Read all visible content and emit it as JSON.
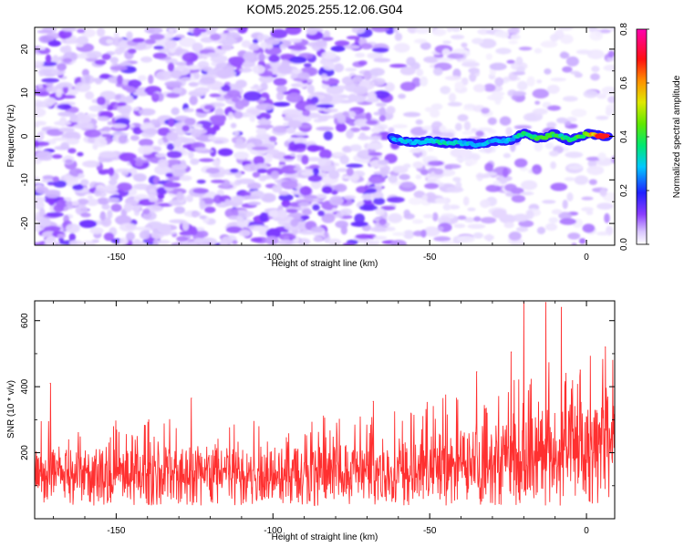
{
  "title": "KOM5.2025.255.12.06.G04",
  "chart_data": [
    {
      "type": "heatmap",
      "xlabel": "Height of straight line (km)",
      "ylabel": "Frequency (Hz)",
      "xlim": [
        -176,
        9
      ],
      "ylim": [
        -25,
        25
      ],
      "xticks": [
        -150,
        -100,
        -50,
        0
      ],
      "yticks": [
        -20,
        -10,
        0,
        10,
        20
      ],
      "colorbar": {
        "label": "Normalized spectral amplitude",
        "range": [
          0,
          0.8
        ],
        "ticks": [
          "0.0",
          "0.2",
          "0.4",
          "0.6",
          "0.8"
        ],
        "colors": [
          "#ffffff",
          "#c8a8ff",
          "#7a2cff",
          "#2222ff",
          "#00e0e0",
          "#00e000",
          "#d0e000",
          "#ff8000",
          "#ff0000",
          "#ff00aa"
        ]
      },
      "signal_trace": {
        "description_x": [
          -62,
          -55,
          -50,
          -45,
          -40,
          -35,
          -30,
          -25,
          -20,
          -15,
          -10,
          -5,
          0,
          3,
          7
        ],
        "frequency_hz": [
          -0.5,
          -1.5,
          -1.0,
          -1.5,
          -1.5,
          -2.0,
          -1.0,
          -1.0,
          0.5,
          -0.5,
          0.5,
          -1.0,
          0.5,
          0.2,
          0.0
        ],
        "amplitude": [
          0.25,
          0.3,
          0.3,
          0.32,
          0.3,
          0.28,
          0.28,
          0.26,
          0.38,
          0.42,
          0.36,
          0.4,
          0.45,
          0.65,
          0.8
        ]
      }
    },
    {
      "type": "line",
      "xlabel": "Height of straight line (km)",
      "ylabel": "SNR (10 * v/v)",
      "xlim": [
        -176,
        9
      ],
      "ylim": [
        0,
        660
      ],
      "xticks": [
        -150,
        -100,
        -50,
        0
      ],
      "yticks": [
        200,
        400,
        600
      ],
      "series": [
        {
          "name": "SNR",
          "color": "#ff3030",
          "x_range": [
            -176,
            9
          ],
          "baseline_envelope": {
            "x": [
              -176,
              -100,
              -60,
              -40,
              -20,
              0,
              9
            ],
            "median": [
              140,
              145,
              150,
              175,
              200,
              240,
              260
            ],
            "typical_max": [
              300,
              310,
              330,
              400,
              460,
              520,
              500
            ]
          },
          "peaks": [
            {
              "x": -171,
              "y": 410
            },
            {
              "x": -126,
              "y": 365
            },
            {
              "x": -68,
              "y": 355
            },
            {
              "x": -35,
              "y": 445
            },
            {
              "x": -24,
              "y": 505
            },
            {
              "x": -20,
              "y": 655
            },
            {
              "x": -13,
              "y": 655
            },
            {
              "x": -8,
              "y": 640
            },
            {
              "x": -2,
              "y": 450
            },
            {
              "x": 6,
              "y": 520
            }
          ]
        }
      ]
    }
  ]
}
